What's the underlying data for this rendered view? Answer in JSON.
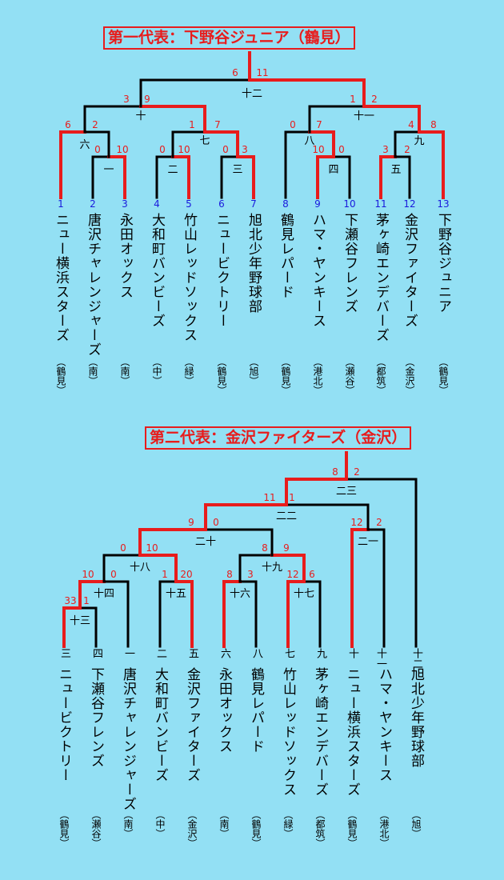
{
  "bracket1": {
    "title": "第一代表：下野谷ジュニア（鶴見）",
    "seeds": [
      "1",
      "2",
      "3",
      "4",
      "5",
      "6",
      "7",
      "8",
      "9",
      "10",
      "11",
      "12",
      "13"
    ],
    "teams": [
      "ニュー横浜スターズ",
      "唐沢チャレンジャーズ",
      "永田オックス",
      "大和町バンビーズ",
      "竹山レッドソックス",
      "ニュービクトリー",
      "旭北少年野球部",
      "鶴見レパード",
      "ハマ・ヤンキース",
      "下瀬谷フレンズ",
      "茅ヶ崎エンデバーズ",
      "金沢ファイターズ",
      "下野谷ジュニア"
    ],
    "regions": [
      "（鶴見）",
      "（南）",
      "（南）",
      "（中）",
      "（緑）",
      "（鶴見）",
      "（旭）",
      "（鶴見）",
      "（港北）",
      "（瀬谷）",
      "（都筑）",
      "（金沢）",
      "（鶴見）"
    ],
    "games": {
      "g1": {
        "label": "一",
        "s1": "0",
        "s2": "10"
      },
      "g2": {
        "label": "二",
        "s1": "0",
        "s2": "10"
      },
      "g3": {
        "label": "三",
        "s1": "0",
        "s2": "3"
      },
      "g4": {
        "label": "四",
        "s1": "10",
        "s2": "0"
      },
      "g5": {
        "label": "五",
        "s1": "3",
        "s2": "2"
      },
      "g6": {
        "label": "六",
        "s1": "6",
        "s2": "2"
      },
      "g7": {
        "label": "七",
        "s1": "1",
        "s2": "7"
      },
      "g8": {
        "label": "八",
        "s1": "0",
        "s2": "7"
      },
      "g9": {
        "label": "九",
        "s1": "4",
        "s2": "8"
      },
      "g10": {
        "label": "十",
        "s1": "3",
        "s2": "9"
      },
      "g11": {
        "label": "十一",
        "s1": "1",
        "s2": "2"
      },
      "g12": {
        "label": "十二",
        "s1": "6",
        "s2": "11"
      }
    }
  },
  "bracket2": {
    "title": "第二代表：金沢ファイターズ（金沢）",
    "seeds": [
      "三",
      "四",
      "一",
      "二",
      "五",
      "六",
      "八",
      "七",
      "九",
      "十",
      "十一",
      "十二"
    ],
    "teams": [
      "ニュービクトリー",
      "下瀬谷フレンズ",
      "唐沢チャレンジャーズ",
      "大和町バンビーズ",
      "金沢ファイターズ",
      "永田オックス",
      "鶴見レパード",
      "竹山レッドソックス",
      "茅ヶ崎エンデバーズ",
      "ニュー横浜スターズ",
      "ハマ・ヤンキース",
      "旭北少年野球部"
    ],
    "regions": [
      "（鶴見）",
      "（瀬谷）",
      "（南）",
      "（中）",
      "（金沢）",
      "（南）",
      "（鶴見）",
      "（緑）",
      "（都筑）",
      "（鶴見）",
      "（港北）",
      "（旭）"
    ],
    "games": {
      "g13": {
        "label": "十三",
        "s1": "33",
        "s2": "1"
      },
      "g14": {
        "label": "十四",
        "s1": "10",
        "s2": "0"
      },
      "g15": {
        "label": "十五",
        "s1": "1",
        "s2": "20"
      },
      "g16": {
        "label": "十六",
        "s1": "8",
        "s2": "3"
      },
      "g17": {
        "label": "十七",
        "s1": "12",
        "s2": "6"
      },
      "g18": {
        "label": "十八",
        "s1": "0",
        "s2": "10"
      },
      "g19": {
        "label": "十九",
        "s1": "8",
        "s2": "9"
      },
      "g20": {
        "label": "二十",
        "s1": "9",
        "s2": "0"
      },
      "g21": {
        "label": "二一",
        "s1": "12",
        "s2": "2"
      },
      "g22": {
        "label": "二二",
        "s1": "11",
        "s2": "1"
      },
      "g23": {
        "label": "二三",
        "s1": "8",
        "s2": "2"
      }
    }
  },
  "colors": {
    "background": "#93e0f4",
    "winner": "#e81c1c",
    "loser": "#000000",
    "seed": "#1a1adc",
    "score": "#e81c1c"
  }
}
